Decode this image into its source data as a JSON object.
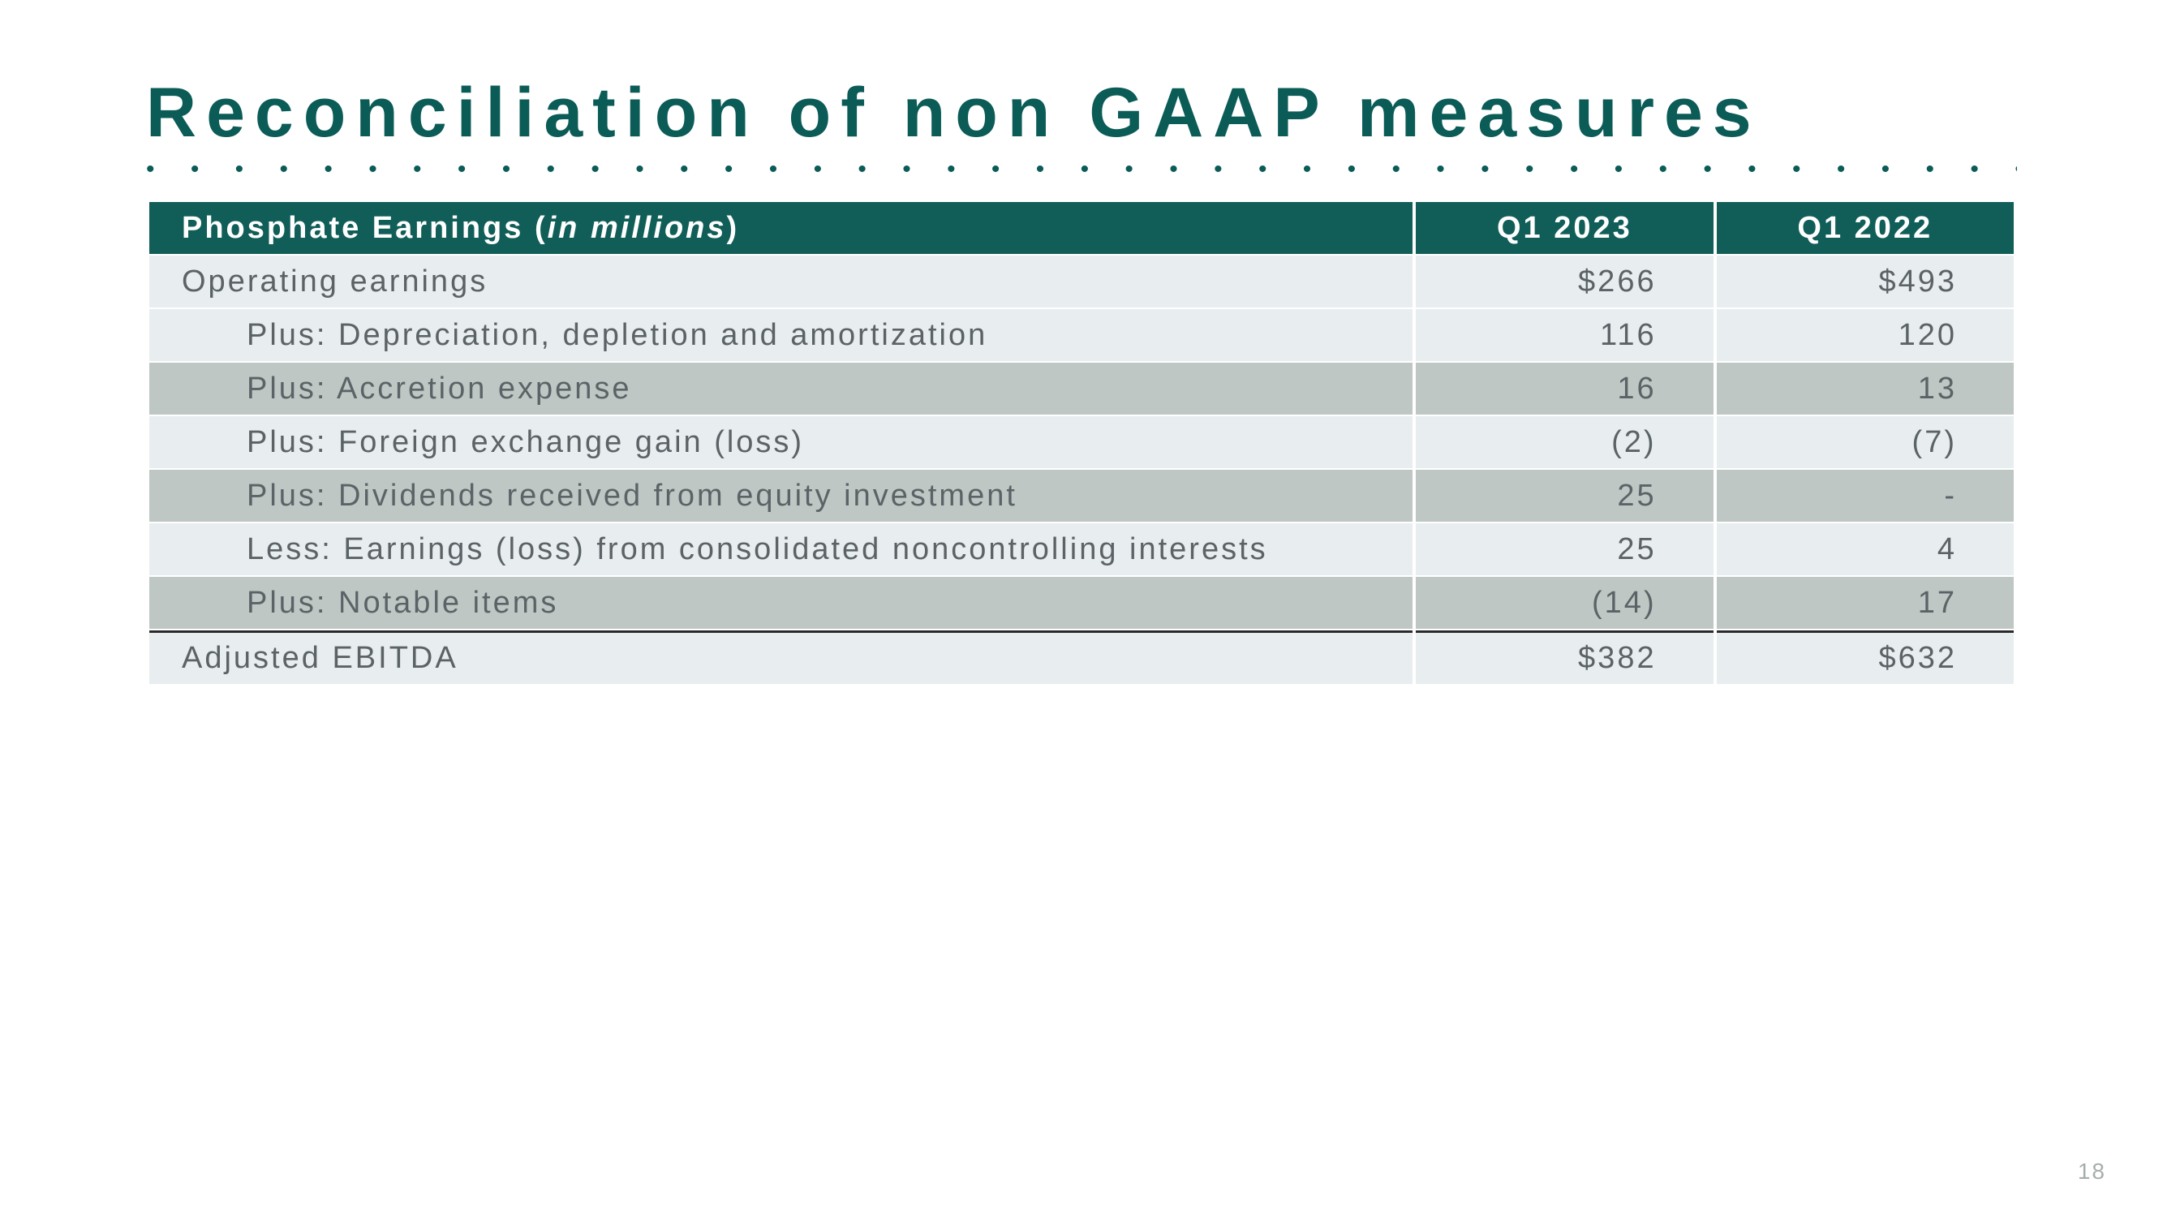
{
  "title": "Reconciliation of non GAAP measures",
  "page_number": "18",
  "table": {
    "header_bg": "#115e59",
    "header_fg": "#ffffff",
    "row_bg_light": "#e8edef",
    "row_bg_dark": "#bfc7c5",
    "text_color": "#5b6366",
    "columns": {
      "label": "Phosphate Earnings (",
      "label_italic": "in millions",
      "label_close": ")",
      "c1": "Q1 2023",
      "c2": "Q1 2022"
    },
    "rows": [
      {
        "label": "Operating earnings",
        "indent": false,
        "c1": "$266",
        "c2": "$493",
        "alt": false
      },
      {
        "label": "Plus: Depreciation, depletion and amortization",
        "indent": true,
        "c1": "116",
        "c2": "120",
        "alt": false
      },
      {
        "label": "Plus: Accretion expense",
        "indent": true,
        "c1": "16",
        "c2": "13",
        "alt": true
      },
      {
        "label": "Plus: Foreign exchange gain (loss)",
        "indent": true,
        "c1": "(2)",
        "c2": "(7)",
        "alt": false
      },
      {
        "label": "Plus:  Dividends received from equity investment",
        "indent": true,
        "c1": "25",
        "c2": "-",
        "alt": true
      },
      {
        "label": "Less: Earnings (loss) from consolidated noncontrolling interests",
        "indent": true,
        "c1": "25",
        "c2": "4",
        "alt": false
      },
      {
        "label": "Plus: Notable items",
        "indent": true,
        "c1": "(14)",
        "c2": "17",
        "alt": true
      },
      {
        "label": "Adjusted EBITDA",
        "indent": false,
        "c1": "$382",
        "c2": "$632",
        "alt": false,
        "subtotal": true
      }
    ]
  }
}
